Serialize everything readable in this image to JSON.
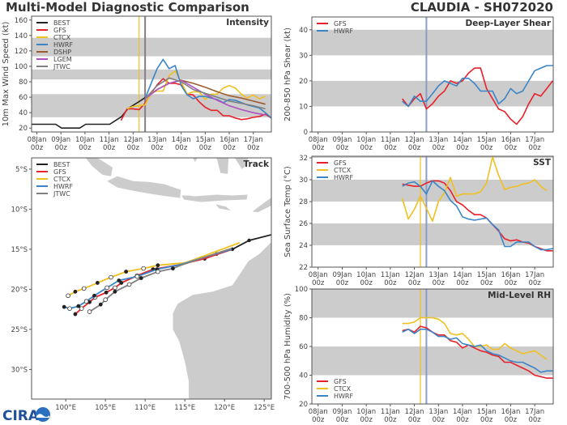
{
  "header": {
    "title": "Multi-Model Diagnostic Comparison",
    "storm": "CLAUDIA - SH072020"
  },
  "logo": "CIRA",
  "colors": {
    "BEST": "#222222",
    "GFS": "#e8212a",
    "CTCX": "#f0c020",
    "HWRF": "#3a85c8",
    "DSHP": "#9c5b2e",
    "LGEM": "#b050c0",
    "JTWC": "#808080",
    "band": "#cccccc",
    "vline_ctcx": "#f0c020",
    "vline_init": "#8a7d86",
    "vline_blue": "#8c9cc4"
  },
  "time_ticks": [
    {
      "day": "08Jan",
      "hour": "00z"
    },
    {
      "day": "09Jan",
      "hour": "00z"
    },
    {
      "day": "10Jan",
      "hour": "00z"
    },
    {
      "day": "11Jan",
      "hour": "00z"
    },
    {
      "day": "12Jan",
      "hour": "00z"
    },
    {
      "day": "13Jan",
      "hour": "00z"
    },
    {
      "day": "14Jan",
      "hour": "00z"
    },
    {
      "day": "15Jan",
      "hour": "00z"
    },
    {
      "day": "16Jan",
      "hour": "00z"
    },
    {
      "day": "17Jan",
      "hour": "00z"
    }
  ],
  "chart_data": [
    {
      "type": "line",
      "title": "Intensity",
      "ylabel": "10m Max Wind Speed (kt)",
      "xunit": "days since 08Jan 00z",
      "xlim": [
        -0.22,
        9.75
      ],
      "ylim": [
        15,
        165
      ],
      "yticks": [
        "20",
        "40",
        "60",
        "80",
        "100",
        "120",
        "140",
        "160"
      ],
      "bands": [
        [
          34,
          64
        ],
        [
          83,
          96
        ],
        [
          113,
          137
        ]
      ],
      "vlines": [
        {
          "x": 4.25,
          "color": "#f0c020"
        },
        {
          "x": 4.5,
          "color": "#8a7d86"
        }
      ],
      "legend": "top-left",
      "series": [
        {
          "name": "BEST",
          "color": "#222222",
          "start": -0.22,
          "step": 0.25,
          "y": [
            25,
            25,
            25,
            25,
            25,
            20,
            20,
            20,
            20,
            25,
            25,
            25,
            25,
            25,
            30,
            35,
            45,
            50,
            55,
            60
          ]
        },
        {
          "name": "GFS",
          "color": "#e8212a",
          "start": 3.5,
          "step": 0.25,
          "y": [
            30,
            45,
            45,
            44,
            52,
            65,
            76,
            84,
            78,
            78,
            76,
            64,
            63,
            54,
            47,
            43,
            43,
            36,
            36,
            33,
            31,
            32,
            34,
            35,
            38,
            33
          ]
        },
        {
          "name": "CTCX",
          "color": "#f0c020",
          "start": 3.75,
          "step": 0.25,
          "y": [
            45,
            48,
            49,
            50,
            66,
            68,
            68,
            88,
            94,
            80,
            64,
            67,
            67,
            57,
            64,
            64,
            72,
            75,
            72,
            64,
            59,
            63,
            58,
            61
          ]
        },
        {
          "name": "HWRF",
          "color": "#3a85c8",
          "start": 4.5,
          "step": 0.25,
          "y": [
            58,
            78,
            97,
            109,
            97,
            101,
            75,
            63,
            58,
            61,
            61,
            59,
            57,
            53,
            57,
            56,
            53,
            50,
            48,
            46,
            40,
            33
          ]
        },
        {
          "name": "DSHP",
          "color": "#9c5b2e",
          "start": 4.5,
          "step": 0.5,
          "y": [
            58,
            70,
            78,
            82,
            78,
            73,
            67,
            62,
            59,
            55,
            51
          ]
        },
        {
          "name": "LGEM",
          "color": "#b050c0",
          "start": 4.5,
          "step": 0.5,
          "y": [
            58,
            70,
            78,
            82,
            73,
            64,
            56,
            49,
            44,
            40,
            37
          ]
        },
        {
          "name": "JTWC",
          "color": "#808080",
          "start": 4.5,
          "step": 0.5,
          "y": [
            58,
            75,
            85,
            80,
            70,
            65,
            60,
            55,
            52,
            49,
            45
          ]
        }
      ]
    },
    {
      "type": "line",
      "title": "Deep-Layer Shear",
      "ylabel": "200-850 hPa Shear (kt)",
      "xunit": "days since 08Jan 00z",
      "xlim": [
        -0.26,
        9.77
      ],
      "ylim": [
        0,
        45
      ],
      "yticks": [
        "0",
        "10",
        "20",
        "30",
        "40"
      ],
      "bands": [
        [
          10,
          20
        ],
        [
          30,
          40
        ]
      ],
      "vlines": [
        {
          "x": 4.5,
          "color": "#8c9cc4"
        }
      ],
      "legend": "top-left",
      "series": [
        {
          "name": "GFS",
          "color": "#e8212a",
          "start": 3.5,
          "step": 0.25,
          "y": [
            13,
            10,
            13,
            15,
            9,
            11,
            14,
            16,
            20,
            19,
            20,
            23,
            25,
            25,
            17,
            13,
            9,
            8,
            5,
            3,
            6,
            11,
            15,
            14,
            17,
            20
          ]
        },
        {
          "name": "HWRF",
          "color": "#3a85c8",
          "start": 3.5,
          "step": 0.25,
          "y": [
            12,
            10,
            14,
            12,
            12,
            15,
            18,
            20,
            19,
            18,
            21,
            21,
            19,
            16,
            16,
            16,
            11,
            13,
            17,
            15,
            16,
            20,
            24,
            25,
            26,
            26
          ]
        }
      ]
    },
    {
      "type": "line",
      "title": "SST",
      "ylabel": "Sea Surface Temp (°C)",
      "xunit": "days since 08Jan 00z",
      "xlim": [
        -0.26,
        9.77
      ],
      "ylim": [
        22,
        32.15
      ],
      "yticks": [
        "22",
        "24",
        "26",
        "28",
        "30",
        "32"
      ],
      "bands": [
        [
          24,
          26
        ],
        [
          28,
          30
        ],
        [
          32,
          34
        ]
      ],
      "vlines": [
        {
          "x": 4.25,
          "color": "#f0c020"
        },
        {
          "x": 4.5,
          "color": "#8c9cc4"
        }
      ],
      "legend": "top-left",
      "series": [
        {
          "name": "GFS",
          "color": "#e8212a",
          "start": 3.5,
          "step": 0.25,
          "y": [
            29.6,
            29.5,
            29.4,
            29.4,
            29.7,
            29.9,
            29.9,
            29.7,
            29.0,
            28.0,
            27.7,
            27.2,
            26.8,
            26.8,
            26.5,
            25.9,
            25.3,
            24.6,
            24.4,
            24.5,
            24.3,
            24.2,
            23.9,
            23.7,
            23.5,
            23.5
          ]
        },
        {
          "name": "CTCX",
          "color": "#f0c020",
          "start": 3.5,
          "step": 0.25,
          "y": [
            28.3,
            26.4,
            27.3,
            28.5,
            27.4,
            26.2,
            28.0,
            28.8,
            30.2,
            28.5,
            28.7,
            28.7,
            28.7,
            28.9,
            29.7,
            32.1,
            30.4,
            29.1,
            29.3,
            29.4,
            29.6,
            29.7,
            30.0,
            29.4,
            29.0
          ]
        },
        {
          "name": "HWRF",
          "color": "#3a85c8",
          "start": 3.5,
          "step": 0.25,
          "y": [
            29.4,
            29.7,
            29.8,
            29.4,
            28.7,
            29.9,
            29.4,
            29.0,
            28.1,
            27.6,
            26.6,
            26.4,
            26.3,
            26.4,
            26.5,
            25.9,
            25.4,
            23.9,
            23.9,
            24.3,
            24.3,
            24.3,
            23.9,
            23.6,
            23.6,
            23.7
          ]
        }
      ]
    },
    {
      "type": "line",
      "title": "Mid-Level RH",
      "ylabel": "700-500 hPa Humidity (%)",
      "xunit": "days since 08Jan 00z",
      "xlim": [
        -0.26,
        9.77
      ],
      "ylim": [
        20,
        100
      ],
      "yticks": [
        "20",
        "40",
        "60",
        "80",
        "100"
      ],
      "bands": [
        [
          40,
          60
        ],
        [
          80,
          100
        ]
      ],
      "vlines": [
        {
          "x": 4.25,
          "color": "#f0c020"
        },
        {
          "x": 4.5,
          "color": "#8c9cc4"
        }
      ],
      "legend": "bottom-left",
      "series": [
        {
          "name": "GFS",
          "color": "#e8212a",
          "start": 3.5,
          "step": 0.25,
          "y": [
            71,
            72,
            70,
            74,
            73,
            70,
            68,
            68,
            64,
            63,
            59,
            61,
            59,
            57,
            56,
            54,
            53,
            49,
            49,
            47,
            45,
            43,
            40,
            39,
            38,
            38
          ]
        },
        {
          "name": "CTCX",
          "color": "#f0c020",
          "start": 3.5,
          "step": 0.25,
          "y": [
            76,
            76,
            77,
            80,
            80,
            80,
            79,
            76,
            69,
            68,
            69,
            65,
            60,
            60,
            61,
            58,
            58,
            62,
            59,
            57,
            55,
            56,
            57,
            54,
            51
          ]
        },
        {
          "name": "HWRF",
          "color": "#3a85c8",
          "start": 3.5,
          "step": 0.25,
          "y": [
            70,
            72,
            69,
            72,
            72,
            70,
            67,
            67,
            65,
            66,
            62,
            61,
            60,
            61,
            57,
            55,
            54,
            52,
            50,
            49,
            49,
            47,
            45,
            42,
            43,
            43
          ]
        }
      ]
    },
    {
      "type": "map",
      "title": "Track",
      "xlim": [
        95.7,
        125.9
      ],
      "ylim": [
        -33.7,
        -3.6
      ],
      "xticks": [
        {
          "v": 100,
          "label": "100°E"
        },
        {
          "v": 105,
          "label": "105°E"
        },
        {
          "v": 110,
          "label": "110°E"
        },
        {
          "v": 115,
          "label": "115°E"
        },
        {
          "v": 120,
          "label": "120°E"
        },
        {
          "v": 125,
          "label": "125°E"
        }
      ],
      "yticks": [
        {
          "v": -5,
          "label": "5°S"
        },
        {
          "v": -10,
          "label": "10°S"
        },
        {
          "v": -15,
          "label": "15°S"
        },
        {
          "v": -20,
          "label": "20°S"
        },
        {
          "v": -25,
          "label": "25°S"
        },
        {
          "v": -30,
          "label": "30°S"
        }
      ],
      "legend": "top-left",
      "series": [
        {
          "name": "BEST",
          "color": "#222222",
          "points": [
            [
              125.9,
              -13.2
            ],
            [
              123.1,
              -13.9
            ],
            [
              121,
              -15
            ],
            [
              119,
              -15.6
            ],
            [
              117.5,
              -16.2
            ]
          ]
        },
        {
          "name": "GFS",
          "color": "#e8212a",
          "points": [
            [
              120.7,
              -15.1
            ],
            [
              117.4,
              -16.2
            ],
            [
              114,
              -17
            ],
            [
              111,
              -17.5
            ],
            [
              109,
              -18.3
            ],
            [
              107,
              -19.2
            ],
            [
              106.2,
              -19.8
            ],
            [
              105.1,
              -20.4
            ],
            [
              103.7,
              -21.0
            ],
            [
              103.0,
              -21.6
            ],
            [
              102.0,
              -22.4
            ],
            [
              101.2,
              -23.1
            ]
          ]
        },
        {
          "name": "CTCX",
          "color": "#f0c020",
          "points": [
            [
              121.9,
              -14.2
            ],
            [
              117.5,
              -15.8
            ],
            [
              115,
              -16.7
            ],
            [
              111.6,
              -17.0
            ],
            [
              109.8,
              -17.4
            ],
            [
              107.6,
              -17.8
            ],
            [
              105.7,
              -18.5
            ],
            [
              104,
              -19.2
            ],
            [
              102.3,
              -19.9
            ],
            [
              101.2,
              -20.3
            ],
            [
              100.3,
              -20.8
            ]
          ]
        },
        {
          "name": "HWRF",
          "color": "#3a85c8",
          "points": [
            [
              120.9,
              -15.0
            ],
            [
              117.5,
              -16.0
            ],
            [
              114.5,
              -16.9
            ],
            [
              111.5,
              -17.5
            ],
            [
              109,
              -18.4
            ],
            [
              106.7,
              -18.9
            ],
            [
              105.2,
              -19.8
            ],
            [
              103.6,
              -20.8
            ],
            [
              102.6,
              -21.5
            ],
            [
              101.6,
              -22.1
            ],
            [
              100.5,
              -22.4
            ],
            [
              99.8,
              -22.2
            ]
          ]
        },
        {
          "name": "JTWC",
          "color": "#808080",
          "points": [
            [
              120.9,
              -14.9
            ],
            [
              117.5,
              -16.0
            ],
            [
              114.5,
              -17.0
            ],
            [
              113.5,
              -17.4
            ],
            [
              111.6,
              -17.8
            ],
            [
              109.5,
              -18.6
            ],
            [
              108,
              -19.4
            ],
            [
              106.2,
              -20.3
            ],
            [
              105,
              -21.3
            ],
            [
              104.4,
              -21.9
            ],
            [
              103.0,
              -22.8
            ]
          ]
        }
      ]
    }
  ]
}
